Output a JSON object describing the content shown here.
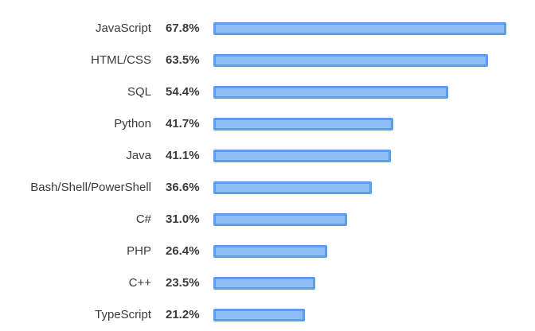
{
  "chart_data": {
    "type": "bar",
    "orientation": "horizontal",
    "categories": [
      "JavaScript",
      "HTML/CSS",
      "SQL",
      "Python",
      "Java",
      "Bash/Shell/PowerShell",
      "C#",
      "PHP",
      "C++",
      "TypeScript"
    ],
    "values": [
      67.8,
      63.5,
      54.4,
      41.7,
      41.1,
      36.6,
      31.0,
      26.4,
      23.5,
      21.2
    ],
    "value_labels": [
      "67.8%",
      "63.5%",
      "54.4%",
      "41.7%",
      "41.1%",
      "36.6%",
      "31.0%",
      "26.4%",
      "23.5%",
      "21.2%"
    ],
    "title": "",
    "xlabel": "",
    "ylabel": "",
    "grid": false,
    "legend": "none",
    "colors": {
      "bar_fill": "#8fbcf5",
      "bar_border": "#5b9ced",
      "text": "#3b3b3b"
    }
  }
}
